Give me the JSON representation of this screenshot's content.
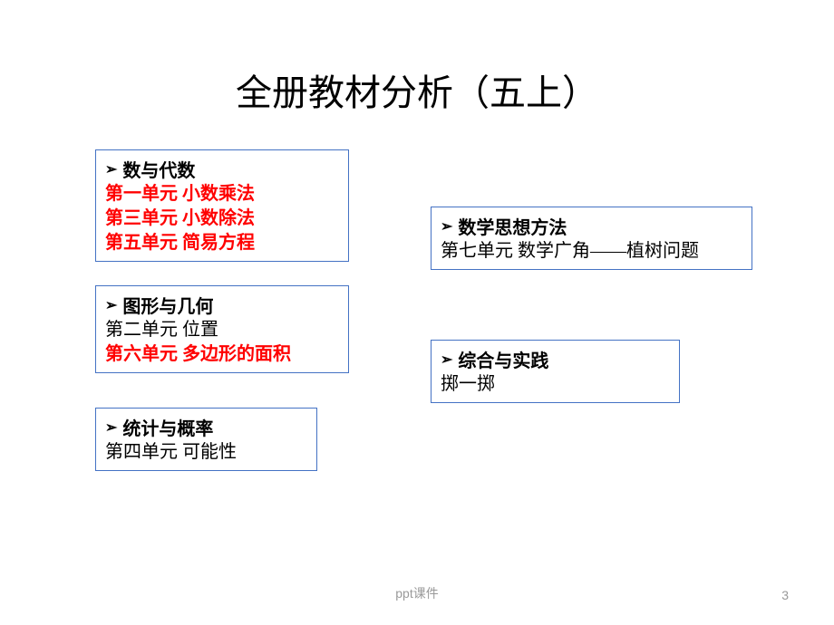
{
  "title": "全册教材分析（五上）",
  "box1": {
    "header": "数与代数",
    "lines": [
      {
        "text": "第一单元 小数乘法",
        "red": true
      },
      {
        "text": "第三单元 小数除法",
        "red": true
      },
      {
        "text": "第五单元 简易方程",
        "red": true
      }
    ]
  },
  "box2": {
    "header": "数学思想方法",
    "lines": [
      {
        "text": "第七单元 数学广角——植树问题",
        "red": false
      }
    ]
  },
  "box3": {
    "header": "图形与几何",
    "lines": [
      {
        "text": "第二单元 位置",
        "red": false
      },
      {
        "text": "第六单元 多边形的面积",
        "red": true
      }
    ]
  },
  "box4": {
    "header": "综合与实践",
    "lines": [
      {
        "text": "掷一掷",
        "red": false
      }
    ]
  },
  "box5": {
    "header": "统计与概率",
    "lines": [
      {
        "text": "第四单元 可能性",
        "red": false
      }
    ]
  },
  "footer": "ppt课件",
  "pageNumber": "3",
  "colors": {
    "boxBorder": "#4472c4",
    "redText": "#ff0000",
    "blackText": "#000000",
    "footerText": "#999999",
    "background": "#ffffff"
  }
}
